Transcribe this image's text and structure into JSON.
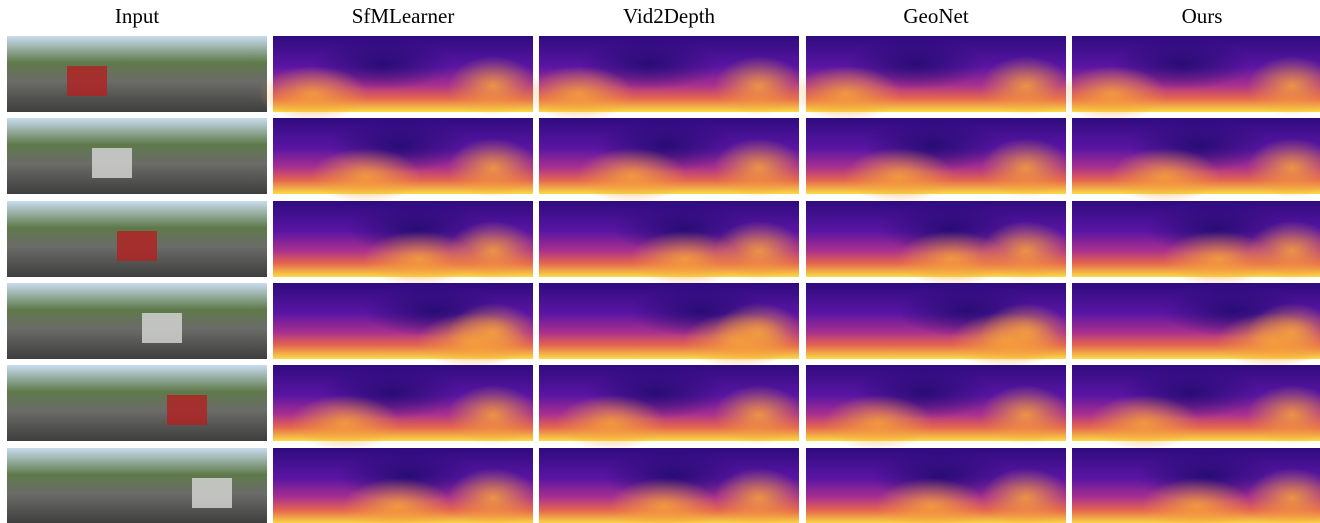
{
  "columns": [
    "Input",
    "SfMLearner",
    "Vid2Depth",
    "GeoNet",
    "Ours"
  ]
}
